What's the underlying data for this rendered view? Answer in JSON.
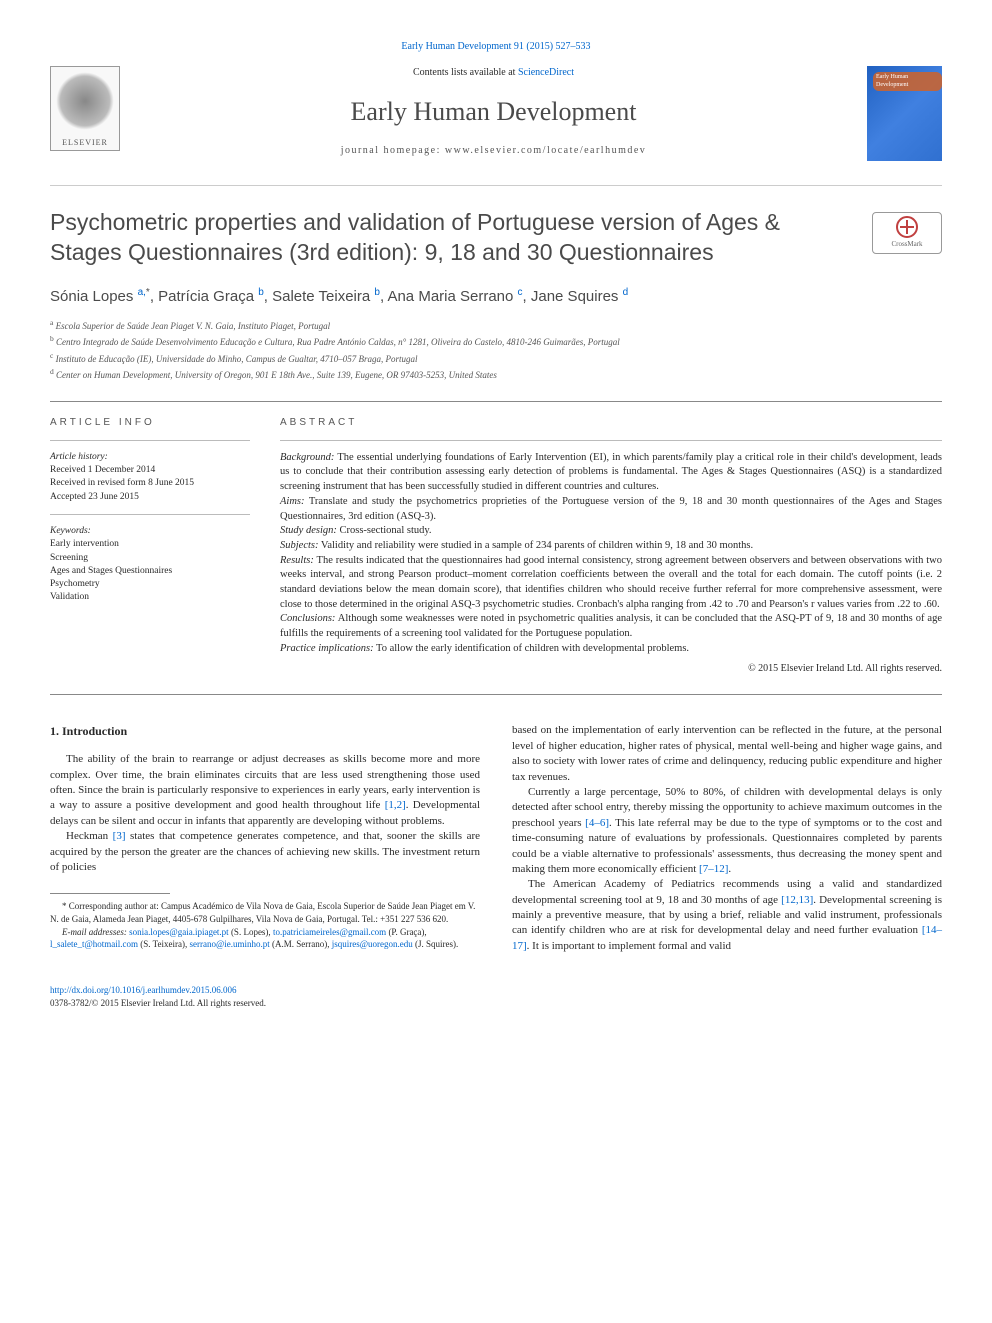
{
  "journalRef": {
    "link_text": "Early Human Development 91 (2015) 527–533",
    "contents_label": "Contents lists available at",
    "contents_link": "ScienceDirect",
    "title": "Early Human Development",
    "homepage_label": "journal homepage:",
    "homepage_url": "www.elsevier.com/locate/earlhumdev",
    "elsevier_name": "ELSEVIER",
    "cover_badge": "Early Human Development"
  },
  "article": {
    "title": "Psychometric properties and validation of Portuguese version of Ages & Stages Questionnaires (3rd edition): 9, 18 and 30 Questionnaires",
    "crossmark_label": "CrossMark",
    "authors_html": "Sónia Lopes <sup><a>a,</a>*</sup>, Patrícia Graça <sup><a>b</a></sup>, Salete Teixeira <sup><a>b</a></sup>, Ana Maria Serrano <sup><a>c</a></sup>, Jane Squires <sup><a>d</a></sup>",
    "affiliations": [
      {
        "sup": "a",
        "text": "Escola Superior de Saúde Jean Piaget V. N. Gaia, Instituto Piaget, Portugal"
      },
      {
        "sup": "b",
        "text": "Centro Integrado de Saúde Desenvolvimento Educação e Cultura, Rua Padre António Caldas, n° 1281, Oliveira do Castelo, 4810-246 Guimarães, Portugal"
      },
      {
        "sup": "c",
        "text": "Instituto de Educação (IE), Universidade do Minho, Campus de Gualtar, 4710–057 Braga, Portugal"
      },
      {
        "sup": "d",
        "text": "Center on Human Development, University of Oregon, 901 E 18th Ave., Suite 139, Eugene, OR 97403-5253, United States"
      }
    ]
  },
  "articleInfo": {
    "heading": "ARTICLE INFO",
    "history_label": "Article history:",
    "history_lines": [
      "Received 1 December 2014",
      "Received in revised form 8 June 2015",
      "Accepted 23 June 2015"
    ],
    "keywords_label": "Keywords:",
    "keywords": [
      "Early intervention",
      "Screening",
      "Ages and Stages Questionnaires",
      "Psychometry",
      "Validation"
    ]
  },
  "abstract": {
    "heading": "ABSTRACT",
    "sections": [
      {
        "label": "Background:",
        "text": "The essential underlying foundations of Early Intervention (EI), in which parents/family play a critical role in their child's development, leads us to conclude that their contribution assessing early detection of problems is fundamental. The Ages & Stages Questionnaires (ASQ) is a standardized screening instrument that has been successfully studied in different countries and cultures."
      },
      {
        "label": "Aims:",
        "text": "Translate and study the psychometrics proprieties of the Portuguese version of the 9, 18 and 30 month questionnaires of the Ages and Stages Questionnaires, 3rd edition (ASQ-3)."
      },
      {
        "label": "Study design:",
        "text": "Cross-sectional study."
      },
      {
        "label": "Subjects:",
        "text": "Validity and reliability were studied in a sample of 234 parents of children within 9, 18 and 30 months."
      },
      {
        "label": "Results:",
        "text": "The results indicated that the questionnaires had good internal consistency, strong agreement between observers and between observations with two weeks interval, and strong Pearson product–moment correlation coefficients between the overall and the total for each domain. The cutoff points (i.e. 2 standard deviations below the mean domain score), that identifies children who should receive further referral for more comprehensive assessment, were close to those determined in the original ASQ-3 psychometric studies. Cronbach's alpha ranging from .42 to .70 and Pearson's r values varies from .22 to .60."
      },
      {
        "label": "Conclusions:",
        "text": "Although some weaknesses were noted in psychometric qualities analysis, it can be concluded that the ASQ-PT of 9, 18 and 30 months of age fulfills the requirements of a screening tool validated for the Portuguese population."
      },
      {
        "label": "Practice implications:",
        "text": "To allow the early identification of children with developmental problems."
      }
    ],
    "copyright": "© 2015 Elsevier Ireland Ltd. All rights reserved."
  },
  "body": {
    "section_number": "1.",
    "section_title": "Introduction",
    "col1_paras": [
      "The ability of the brain to rearrange or adjust decreases as skills become more and more complex. Over time, the brain eliminates circuits that are less used strengthening those used often. Since the brain is particularly responsive to experiences in early years, early intervention is a way to assure a positive development and good health throughout life <a>[1,2]</a>. Developmental delays can be silent and occur in infants that apparently are developing without problems.",
      "Heckman <a>[3]</a> states that competence generates competence, and that, sooner the skills are acquired by the person the greater are the chances of achieving new skills. The investment return of policies"
    ],
    "col2_paras": [
      "based on the implementation of early intervention can be reflected in the future, at the personal level of higher education, higher rates of physical, mental well-being and higher wage gains, and also to society with lower rates of crime and delinquency, reducing public expenditure and higher tax revenues.",
      "Currently a large percentage, 50% to 80%, of children with developmental delays is only detected after school entry, thereby missing the opportunity to achieve maximum outcomes in the preschool years <a>[4–6]</a>. This late referral may be due to the type of symptoms or to the cost and time-consuming nature of evaluations by professionals. Questionnaires completed by parents could be a viable alternative to professionals' assessments, thus decreasing the money spent and making them more economically efficient <a>[7–12]</a>.",
      "The American Academy of Pediatrics recommends using a valid and standardized developmental screening tool at 9, 18 and 30 months of age <a>[12,13]</a>. Developmental screening is mainly a preventive measure, that by using a brief, reliable and valid instrument, professionals can identify children who are at risk for developmental delay and need further evaluation <a>[14–17]</a>. It is important to implement formal and valid"
    ]
  },
  "footnotes": {
    "corr_label": "* Corresponding author at:",
    "corr_text": "Campus Académico de Vila Nova de Gaia, Escola Superior de Saúde Jean Piaget em V. N. de Gaia, Alameda Jean Piaget, 4405-678 Gulpilhares, Vila Nova de Gaia, Portugal. Tel.: +351 227 536 620.",
    "email_label": "E-mail addresses:",
    "emails": [
      {
        "addr": "sonia.lopes@gaia.ipiaget.pt",
        "who": "(S. Lopes)"
      },
      {
        "addr": "to.patriciameireles@gmail.com",
        "who": "(P. Graça)"
      },
      {
        "addr": "l_salete_t@hotmail.com",
        "who": "(S. Teixeira)"
      },
      {
        "addr": "serrano@ie.uminho.pt",
        "who": "(A.M. Serrano)"
      },
      {
        "addr": "jsquires@uoregon.edu",
        "who": "(J. Squires)"
      }
    ]
  },
  "footer": {
    "doi": "http://dx.doi.org/10.1016/j.earlhumdev.2015.06.006",
    "issn_line": "0378-3782/© 2015 Elsevier Ireland Ltd. All rights reserved."
  },
  "colors": {
    "link": "#0066cc",
    "text": "#2a2a2a",
    "heading": "#4a4a4a",
    "rule": "#888888",
    "light_rule": "#cccccc",
    "cover_bg": "#3070d0"
  },
  "typography": {
    "body_font": "Georgia, 'Times New Roman', serif",
    "heading_font": "Arial, sans-serif",
    "article_title_size": 23,
    "journal_title_size": 26,
    "body_size": 11,
    "abstract_size": 10.5,
    "info_size": 9.5,
    "affil_size": 9
  }
}
